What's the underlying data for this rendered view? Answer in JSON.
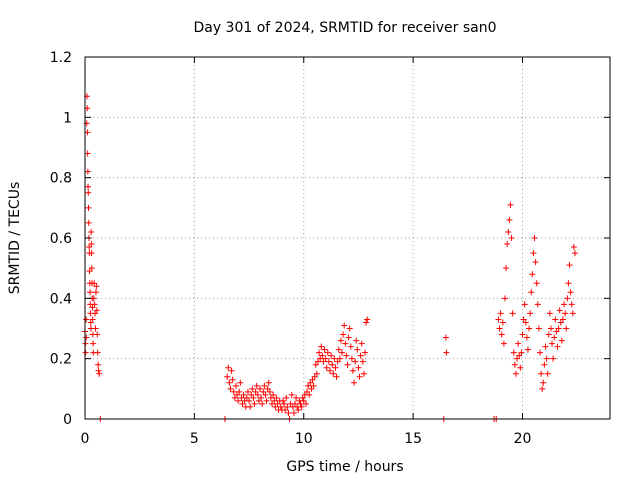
{
  "chart_data": {
    "type": "scatter",
    "title": "Day 301 of 2024, SRMTID for receiver san0",
    "xlabel": "GPS time / hours",
    "ylabel": "SRMTID / TECUs",
    "xlim": [
      0,
      24
    ],
    "ylim": [
      0,
      1.2
    ],
    "xticks": [
      0,
      5,
      10,
      15,
      20
    ],
    "xtick_labels": [
      "0",
      "5",
      "10",
      "15",
      "20"
    ],
    "yticks": [
      0,
      0.2,
      0.4,
      0.6,
      0.8,
      1.0,
      1.2
    ],
    "ytick_labels": [
      "0",
      "0.2",
      "0.4",
      "0.6",
      "0.8",
      "1",
      "1.2"
    ],
    "grid": true,
    "marker": "+",
    "color": "#ff0000",
    "series": [
      {
        "name": "SRMTID",
        "points": [
          [
            0.0,
            0.29
          ],
          [
            0.02,
            0.25
          ],
          [
            0.03,
            0.22
          ],
          [
            0.05,
            0.33
          ],
          [
            0.06,
            0.27
          ],
          [
            0.08,
            0.98
          ],
          [
            0.09,
            1.07
          ],
          [
            0.1,
            1.03
          ],
          [
            0.11,
            0.95
          ],
          [
            0.12,
            0.88
          ],
          [
            0.13,
            0.82
          ],
          [
            0.14,
            0.77
          ],
          [
            0.15,
            0.75
          ],
          [
            0.16,
            0.7
          ],
          [
            0.17,
            0.65
          ],
          [
            0.18,
            0.6
          ],
          [
            0.19,
            0.57
          ],
          [
            0.2,
            0.55
          ],
          [
            0.21,
            0.49
          ],
          [
            0.22,
            0.45
          ],
          [
            0.23,
            0.42
          ],
          [
            0.24,
            0.38
          ],
          [
            0.25,
            0.35
          ],
          [
            0.26,
            0.32
          ],
          [
            0.27,
            0.3
          ],
          [
            0.28,
            0.62
          ],
          [
            0.29,
            0.58
          ],
          [
            0.3,
            0.55
          ],
          [
            0.31,
            0.5
          ],
          [
            0.32,
            0.45
          ],
          [
            0.33,
            0.4
          ],
          [
            0.34,
            0.37
          ],
          [
            0.35,
            0.33
          ],
          [
            0.36,
            0.28
          ],
          [
            0.37,
            0.25
          ],
          [
            0.38,
            0.22
          ],
          [
            0.4,
            0.4
          ],
          [
            0.42,
            0.45
          ],
          [
            0.44,
            0.38
          ],
          [
            0.46,
            0.35
          ],
          [
            0.48,
            0.3
          ],
          [
            0.5,
            0.42
          ],
          [
            0.52,
            0.44
          ],
          [
            0.54,
            0.36
          ],
          [
            0.56,
            0.28
          ],
          [
            0.58,
            0.22
          ],
          [
            0.6,
            0.18
          ],
          [
            0.62,
            0.16
          ],
          [
            0.65,
            0.15
          ],
          [
            0.7,
            0.0
          ],
          [
            6.4,
            0.0
          ],
          [
            6.5,
            0.14
          ],
          [
            6.55,
            0.17
          ],
          [
            6.6,
            0.12
          ],
          [
            6.65,
            0.1
          ],
          [
            6.7,
            0.16
          ],
          [
            6.75,
            0.13
          ],
          [
            6.8,
            0.09
          ],
          [
            6.85,
            0.07
          ],
          [
            6.9,
            0.11
          ],
          [
            6.95,
            0.08
          ],
          [
            7.0,
            0.06
          ],
          [
            7.05,
            0.09
          ],
          [
            7.1,
            0.12
          ],
          [
            7.15,
            0.07
          ],
          [
            7.2,
            0.05
          ],
          [
            7.25,
            0.08
          ],
          [
            7.3,
            0.06
          ],
          [
            7.35,
            0.04
          ],
          [
            7.4,
            0.07
          ],
          [
            7.45,
            0.09
          ],
          [
            7.5,
            0.06
          ],
          [
            7.55,
            0.04
          ],
          [
            7.6,
            0.08
          ],
          [
            7.65,
            0.1
          ],
          [
            7.7,
            0.07
          ],
          [
            7.75,
            0.05
          ],
          [
            7.8,
            0.09
          ],
          [
            7.85,
            0.11
          ],
          [
            7.9,
            0.08
          ],
          [
            7.95,
            0.06
          ],
          [
            8.0,
            0.1
          ],
          [
            8.05,
            0.07
          ],
          [
            8.1,
            0.05
          ],
          [
            8.15,
            0.09
          ],
          [
            8.2,
            0.11
          ],
          [
            8.25,
            0.08
          ],
          [
            8.3,
            0.06
          ],
          [
            8.35,
            0.1
          ],
          [
            8.4,
            0.12
          ],
          [
            8.45,
            0.09
          ],
          [
            8.5,
            0.07
          ],
          [
            8.55,
            0.05
          ],
          [
            8.6,
            0.08
          ],
          [
            8.65,
            0.06
          ],
          [
            8.7,
            0.04
          ],
          [
            8.75,
            0.07
          ],
          [
            8.8,
            0.05
          ],
          [
            8.85,
            0.03
          ],
          [
            8.9,
            0.06
          ],
          [
            8.95,
            0.04
          ],
          [
            9.0,
            0.03
          ],
          [
            9.05,
            0.06
          ],
          [
            9.1,
            0.05
          ],
          [
            9.15,
            0.03
          ],
          [
            9.2,
            0.07
          ],
          [
            9.25,
            0.04
          ],
          [
            9.3,
            0.02
          ],
          [
            9.35,
            0.0
          ],
          [
            9.4,
            0.05
          ],
          [
            9.45,
            0.08
          ],
          [
            9.5,
            0.04
          ],
          [
            9.55,
            0.02
          ],
          [
            9.6,
            0.05
          ],
          [
            9.65,
            0.07
          ],
          [
            9.7,
            0.04
          ],
          [
            9.75,
            0.03
          ],
          [
            9.8,
            0.06
          ],
          [
            9.85,
            0.05
          ],
          [
            9.9,
            0.04
          ],
          [
            9.95,
            0.07
          ],
          [
            10.0,
            0.06
          ],
          [
            10.05,
            0.08
          ],
          [
            10.1,
            0.05
          ],
          [
            10.15,
            0.09
          ],
          [
            10.2,
            0.11
          ],
          [
            10.25,
            0.08
          ],
          [
            10.3,
            0.12
          ],
          [
            10.35,
            0.1
          ],
          [
            10.4,
            0.13
          ],
          [
            10.45,
            0.11
          ],
          [
            10.5,
            0.14
          ],
          [
            10.55,
            0.18
          ],
          [
            10.6,
            0.15
          ],
          [
            10.65,
            0.19
          ],
          [
            10.7,
            0.22
          ],
          [
            10.75,
            0.2
          ],
          [
            10.8,
            0.24
          ],
          [
            10.85,
            0.21
          ],
          [
            10.9,
            0.19
          ],
          [
            10.95,
            0.23
          ],
          [
            11.0,
            0.2
          ],
          [
            11.05,
            0.17
          ],
          [
            11.1,
            0.22
          ],
          [
            11.15,
            0.19
          ],
          [
            11.2,
            0.16
          ],
          [
            11.25,
            0.21
          ],
          [
            11.3,
            0.18
          ],
          [
            11.35,
            0.15
          ],
          [
            11.4,
            0.2
          ],
          [
            11.45,
            0.17
          ],
          [
            11.5,
            0.14
          ],
          [
            11.55,
            0.19
          ],
          [
            11.6,
            0.23
          ],
          [
            11.65,
            0.2
          ],
          [
            11.7,
            0.26
          ],
          [
            11.75,
            0.22
          ],
          [
            11.8,
            0.28
          ],
          [
            11.85,
            0.31
          ],
          [
            11.9,
            0.25
          ],
          [
            11.95,
            0.21
          ],
          [
            12.0,
            0.18
          ],
          [
            12.05,
            0.27
          ],
          [
            12.1,
            0.3
          ],
          [
            12.15,
            0.24
          ],
          [
            12.2,
            0.2
          ],
          [
            12.25,
            0.16
          ],
          [
            12.3,
            0.12
          ],
          [
            12.35,
            0.19
          ],
          [
            12.4,
            0.26
          ],
          [
            12.45,
            0.23
          ],
          [
            12.5,
            0.17
          ],
          [
            12.55,
            0.14
          ],
          [
            12.6,
            0.21
          ],
          [
            12.65,
            0.25
          ],
          [
            12.7,
            0.19
          ],
          [
            12.75,
            0.15
          ],
          [
            12.8,
            0.22
          ],
          [
            12.85,
            0.32
          ],
          [
            12.9,
            0.33
          ],
          [
            16.4,
            0.0
          ],
          [
            16.5,
            0.27
          ],
          [
            16.52,
            0.22
          ],
          [
            18.7,
            0.0
          ],
          [
            18.8,
            0.0
          ],
          [
            18.9,
            0.33
          ],
          [
            18.95,
            0.3
          ],
          [
            19.0,
            0.35
          ],
          [
            19.05,
            0.28
          ],
          [
            19.1,
            0.32
          ],
          [
            19.15,
            0.25
          ],
          [
            19.2,
            0.4
          ],
          [
            19.25,
            0.5
          ],
          [
            19.3,
            0.58
          ],
          [
            19.35,
            0.62
          ],
          [
            19.4,
            0.66
          ],
          [
            19.45,
            0.71
          ],
          [
            19.5,
            0.6
          ],
          [
            19.55,
            0.35
          ],
          [
            19.6,
            0.22
          ],
          [
            19.65,
            0.18
          ],
          [
            19.7,
            0.15
          ],
          [
            19.75,
            0.2
          ],
          [
            19.8,
            0.25
          ],
          [
            19.85,
            0.21
          ],
          [
            19.9,
            0.17
          ],
          [
            19.95,
            0.22
          ],
          [
            20.0,
            0.28
          ],
          [
            20.05,
            0.33
          ],
          [
            20.1,
            0.38
          ],
          [
            20.15,
            0.32
          ],
          [
            20.2,
            0.27
          ],
          [
            20.25,
            0.23
          ],
          [
            20.3,
            0.3
          ],
          [
            20.35,
            0.35
          ],
          [
            20.4,
            0.42
          ],
          [
            20.45,
            0.48
          ],
          [
            20.5,
            0.55
          ],
          [
            20.55,
            0.6
          ],
          [
            20.6,
            0.52
          ],
          [
            20.65,
            0.45
          ],
          [
            20.7,
            0.38
          ],
          [
            20.75,
            0.3
          ],
          [
            20.8,
            0.22
          ],
          [
            20.85,
            0.15
          ],
          [
            20.9,
            0.1
          ],
          [
            20.95,
            0.12
          ],
          [
            21.0,
            0.18
          ],
          [
            21.05,
            0.24
          ],
          [
            21.1,
            0.2
          ],
          [
            21.15,
            0.15
          ],
          [
            21.2,
            0.28
          ],
          [
            21.25,
            0.35
          ],
          [
            21.3,
            0.3
          ],
          [
            21.35,
            0.25
          ],
          [
            21.4,
            0.2
          ],
          [
            21.45,
            0.27
          ],
          [
            21.5,
            0.33
          ],
          [
            21.55,
            0.29
          ],
          [
            21.6,
            0.24
          ],
          [
            21.65,
            0.3
          ],
          [
            21.7,
            0.36
          ],
          [
            21.75,
            0.32
          ],
          [
            21.8,
            0.26
          ],
          [
            21.85,
            0.33
          ],
          [
            21.9,
            0.38
          ],
          [
            21.95,
            0.35
          ],
          [
            22.0,
            0.3
          ],
          [
            22.05,
            0.4
          ],
          [
            22.1,
            0.45
          ],
          [
            22.15,
            0.51
          ],
          [
            22.2,
            0.42
          ],
          [
            22.25,
            0.38
          ],
          [
            22.3,
            0.35
          ],
          [
            22.35,
            0.57
          ],
          [
            22.4,
            0.55
          ]
        ]
      }
    ]
  }
}
